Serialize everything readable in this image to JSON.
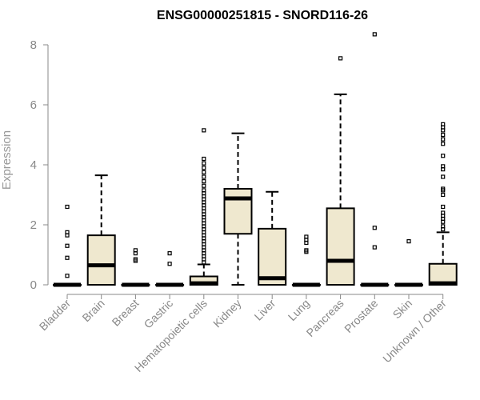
{
  "chart_data": {
    "type": "boxplot",
    "title": "ENSG00000251815 - SNORD116-26",
    "ylabel": "Expression",
    "ylim": [
      0,
      8.4
    ],
    "yticks": [
      0,
      2,
      4,
      6,
      8
    ],
    "box_fill": "#efe8cf",
    "categories": [
      "Bladder",
      "Brain",
      "Breast",
      "Gastric",
      "Hematopoietic cells",
      "Kidney",
      "Liver",
      "Lung",
      "Pancreas",
      "Prostate",
      "Skin",
      "Unknown / Other"
    ],
    "boxes": [
      {
        "q1": 0,
        "median": 0,
        "q3": 0,
        "whisker_low": 0,
        "whisker_high": 0,
        "outliers": [
          0.3,
          0.9,
          1.3,
          1.65,
          1.75,
          2.6
        ]
      },
      {
        "q1": 0,
        "median": 0.65,
        "q3": 1.65,
        "whisker_low": 0,
        "whisker_high": 3.65,
        "outliers": []
      },
      {
        "q1": 0,
        "median": 0,
        "q3": 0,
        "whisker_low": 0,
        "whisker_high": 0,
        "outliers": [
          0.8,
          0.85,
          1.05,
          1.15
        ]
      },
      {
        "q1": 0,
        "median": 0,
        "q3": 0,
        "whisker_low": 0,
        "whisker_high": 0,
        "outliers": [
          0.7,
          1.05
        ]
      },
      {
        "q1": 0,
        "median": 0.05,
        "q3": 0.28,
        "whisker_low": 0,
        "whisker_high": 0.68,
        "outliers": [
          0.75,
          0.85,
          0.95,
          1.05,
          1.15,
          1.25,
          1.35,
          1.45,
          1.55,
          1.65,
          1.75,
          1.85,
          1.95,
          2.05,
          2.15,
          2.25,
          2.35,
          2.45,
          2.55,
          2.65,
          2.75,
          2.85,
          2.95,
          3.05,
          3.15,
          3.3,
          3.45,
          3.6,
          3.75,
          3.9,
          4.05,
          4.2,
          5.15
        ]
      },
      {
        "q1": 1.7,
        "median": 2.88,
        "q3": 3.2,
        "whisker_low": 0,
        "whisker_high": 5.05,
        "outliers": []
      },
      {
        "q1": 0,
        "median": 0.22,
        "q3": 1.87,
        "whisker_low": 0,
        "whisker_high": 3.1,
        "outliers": []
      },
      {
        "q1": 0,
        "median": 0,
        "q3": 0,
        "whisker_low": 0,
        "whisker_high": 0,
        "outliers": [
          1.1,
          1.15,
          1.4,
          1.5,
          1.6
        ]
      },
      {
        "q1": 0,
        "median": 0.8,
        "q3": 2.55,
        "whisker_low": 0,
        "whisker_high": 6.35,
        "outliers": [
          7.55
        ]
      },
      {
        "q1": 0,
        "median": 0,
        "q3": 0,
        "whisker_low": 0,
        "whisker_high": 0,
        "outliers": [
          1.25,
          1.9,
          8.35
        ]
      },
      {
        "q1": 0,
        "median": 0,
        "q3": 0,
        "whisker_low": 0,
        "whisker_high": 0,
        "outliers": [
          1.45
        ]
      },
      {
        "q1": 0,
        "median": 0.05,
        "q3": 0.7,
        "whisker_low": 0,
        "whisker_high": 1.75,
        "outliers": [
          1.85,
          1.95,
          2.1,
          2.2,
          2.3,
          2.4,
          2.6,
          3.0,
          3.15,
          3.2,
          3.6,
          3.85,
          3.95,
          4.3,
          4.7,
          4.85,
          5.0,
          5.15,
          5.25,
          5.35
        ]
      }
    ]
  }
}
